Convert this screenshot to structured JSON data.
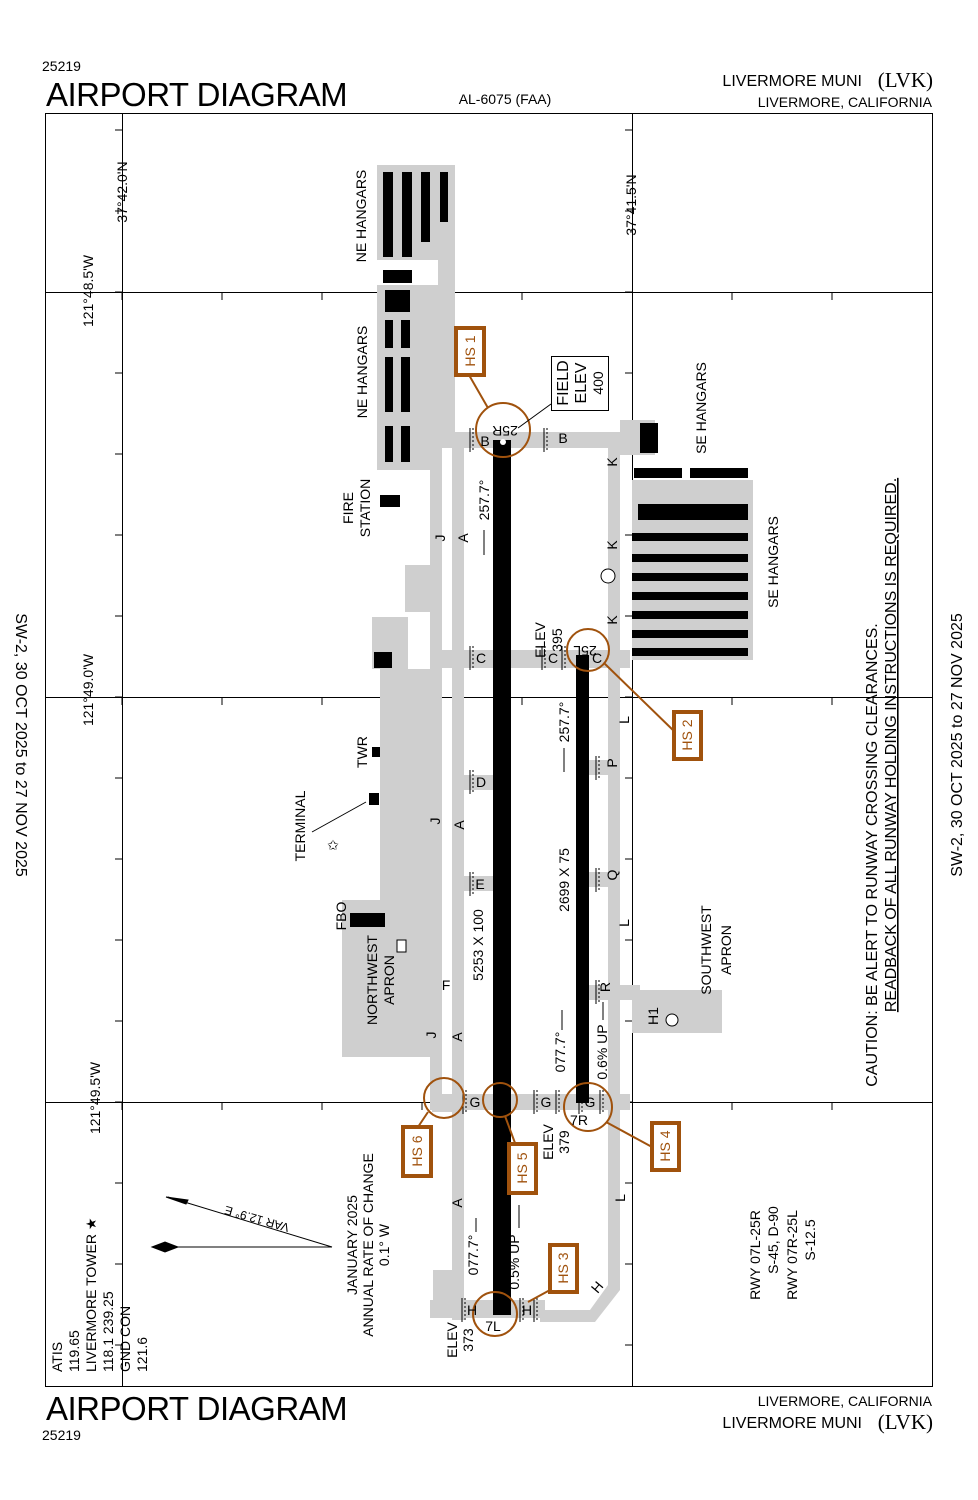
{
  "header": {
    "chart_number": "25219",
    "title": "AIRPORT DIAGRAM",
    "document_id": "AL-6075 (FAA)",
    "airport_name": "LIVERMORE MUNI",
    "airport_id": "(LVK)",
    "city_state": "LIVERMORE, CALIFORNIA"
  },
  "footer": {
    "chart_number": "25219",
    "title": "AIRPORT DIAGRAM",
    "airport_name": "LIVERMORE MUNI",
    "airport_id": "(LVK)",
    "city_state": "LIVERMORE, CALIFORNIA"
  },
  "effective_dates": {
    "left": "SW-2,  30 OCT 2025  to  27 NOV 2025",
    "right": "SW-2,  30 OCT 2025  to  27 NOV 2025"
  },
  "coordinates": {
    "lat_1": "37°42.0'N",
    "lat_2": "37°41.5'N",
    "lon_1": "121°48.5'W",
    "lon_2": "121°49.0'W",
    "lon_3": "121°49.5'W"
  },
  "areas": {
    "ne_hangars_1": "NE HANGARS",
    "ne_hangars_2": "NE HANGARS",
    "fire_station": [
      "FIRE",
      "STATION"
    ],
    "twr": "TWR",
    "terminal": "TERMINAL",
    "fbo": "FBO",
    "northwest_apron": [
      "NORTHWEST",
      "APRON"
    ],
    "se_hangars_1": "SE HANGARS",
    "se_hangars_2": "SE HANGARS",
    "southwest_apron": [
      "SOUTHWEST",
      "APRON"
    ],
    "heliport": "H1"
  },
  "field_elev": [
    "FIELD",
    "ELEV",
    "400"
  ],
  "runways": {
    "r25R": "25R",
    "r7L": "7L",
    "r25L": "25L",
    "r7R": "7R",
    "hdg_25R": "257.7°",
    "hdg_25L": "257.7°",
    "hdg_7L": "077.7°",
    "hdg_7R": "077.7°",
    "dim_7L": "5253 X 100",
    "dim_7R": "2699 X 75",
    "grad_7R": "0.6% UP",
    "grad_7L": "0.5% UP",
    "elev_25L": [
      "ELEV",
      "395"
    ],
    "elev_7R": [
      "ELEV",
      "379"
    ],
    "elev_7L": [
      "ELEV",
      "373"
    ]
  },
  "hot_spots": [
    "HS 1",
    "HS 2",
    "HS 3",
    "HS 4",
    "HS 5",
    "HS 6"
  ],
  "taxiways": [
    "B",
    "B",
    "K",
    "K",
    "K",
    "J",
    "J",
    "J",
    "A",
    "A",
    "A",
    "A",
    "C",
    "C",
    "C",
    "D",
    "P",
    "E",
    "Q",
    "L",
    "L",
    "L",
    "F",
    "R",
    "G",
    "G",
    "G",
    "H",
    "H",
    "H"
  ],
  "caution": [
    "CAUTION: BE ALERT TO RUNWAY CROSSING CLEARANCES.",
    "READBACK OF ALL RUNWAY HOLDING INSTRUCTIONS IS REQUIRED."
  ],
  "declared_distances": [
    "RWY 07L-25R",
    "S-45, D-90",
    "RWY 07R-25L",
    "S-12.5"
  ],
  "magnetic_variation": {
    "var": "VAR 12.9° E",
    "lines": [
      "JANUARY 2025",
      "ANNUAL RATE OF CHANGE",
      "0.1° W"
    ]
  },
  "frequencies": [
    "ATIS",
    "119.65",
    "LIVERMORE TOWER ★",
    "118.1  239.25",
    "GND CON",
    "121.6"
  ],
  "colors": {
    "hot_spot": "#a0520d",
    "pavement": "#cfcfcf",
    "runway": "#000000"
  }
}
